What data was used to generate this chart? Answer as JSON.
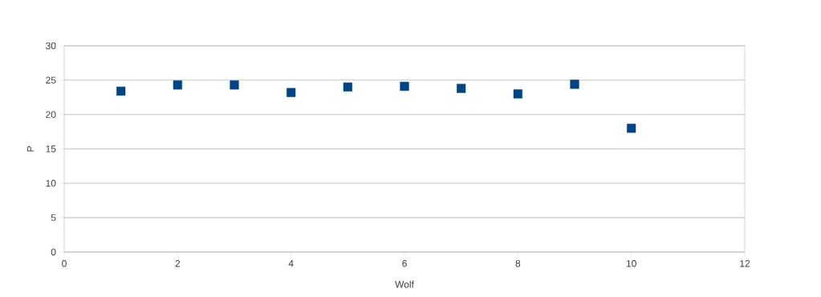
{
  "chart_data": {
    "type": "scatter",
    "xlabel": "Wolf",
    "ylabel": "P",
    "x": [
      1,
      2,
      3,
      4,
      5,
      6,
      7,
      8,
      9,
      10
    ],
    "values": [
      23.4,
      24.3,
      24.3,
      23.2,
      24.0,
      24.1,
      23.8,
      23.0,
      24.4,
      18.0
    ],
    "color": "#004586",
    "marker": "square",
    "xlim": [
      0,
      12
    ],
    "xticks": [
      0,
      2,
      4,
      6,
      8,
      10,
      12
    ],
    "ylim": [
      0,
      30
    ],
    "yticks": [
      0,
      5,
      10,
      15,
      20,
      25,
      30
    ],
    "grid": "y"
  }
}
